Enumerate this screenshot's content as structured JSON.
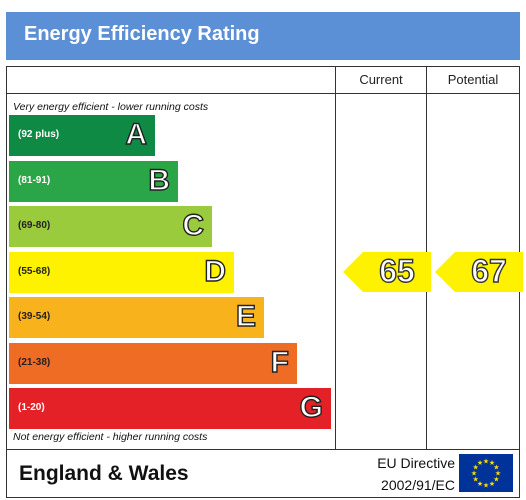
{
  "header": {
    "title": "Energy Efficiency Rating"
  },
  "columns": {
    "current": "Current",
    "potential": "Potential"
  },
  "notes": {
    "top": "Very energy efficient - lower running costs",
    "bottom": "Not energy efficient - higher running costs"
  },
  "chart_data": {
    "type": "bar",
    "title": "Energy Efficiency Rating",
    "bands": [
      {
        "letter": "A",
        "range": "(92 plus)",
        "color": "#0f8a44",
        "text_color": "#ffffff"
      },
      {
        "letter": "B",
        "range": "(81-91)",
        "color": "#2aa648",
        "text_color": "#ffffff"
      },
      {
        "letter": "C",
        "range": "(69-80)",
        "color": "#9acb3c",
        "text_color": "#222222"
      },
      {
        "letter": "D",
        "range": "(55-68)",
        "color": "#fff200",
        "text_color": "#222222"
      },
      {
        "letter": "E",
        "range": "(39-54)",
        "color": "#f8b21c",
        "text_color": "#222222"
      },
      {
        "letter": "F",
        "range": "(21-38)",
        "color": "#ef6c25",
        "text_color": "#222222"
      },
      {
        "letter": "G",
        "range": "(1-20)",
        "color": "#e52128",
        "text_color": "#ffffff"
      }
    ],
    "current": {
      "value": 65,
      "band": "D"
    },
    "potential": {
      "value": 67,
      "band": "D"
    },
    "arrow_color": "#fff200"
  },
  "footer": {
    "country": "England & Wales",
    "directive_line1": "EU Directive",
    "directive_line2": "2002/91/EC",
    "flag_icon": "eu-flag-icon",
    "flag_color": "#003399",
    "star_color": "#ffdd00"
  }
}
